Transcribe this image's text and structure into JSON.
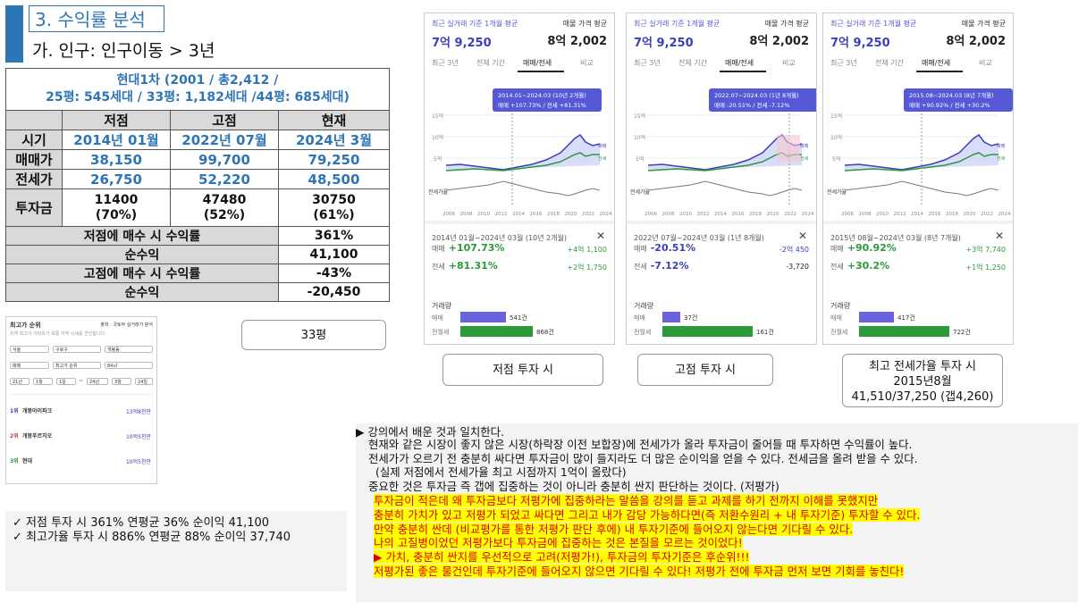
{
  "header": {
    "section_title": "3. 수익률 분석",
    "subtitle": "가. 인구: 인구이동 > 3년"
  },
  "table": {
    "title_line1": "현대1차 (2001 / 총2,412 /",
    "title_line2": "25평: 545세대 / 33평: 1,182세대 /44평: 685세대)",
    "col_headers": [
      "저점",
      "고점",
      "현재"
    ],
    "rows": {
      "period": {
        "label": "시기",
        "values": [
          "2014년 01월",
          "2022년 07월",
          "2024년 3월"
        ]
      },
      "sale": {
        "label": "매매가",
        "values": [
          "38,150",
          "99,700",
          "79,250"
        ]
      },
      "jeonse": {
        "label": "전세가",
        "values": [
          "26,750",
          "52,220",
          "48,500"
        ]
      },
      "invest": {
        "label": "투자금",
        "values": [
          "11400",
          "47480",
          "30750"
        ],
        "pct": [
          "(70%)",
          "(52%)",
          "(61%)"
        ]
      }
    },
    "summary": [
      {
        "label": "저점에 매수 시 수익률",
        "value": "361%"
      },
      {
        "label": "순수익",
        "value": "41,100"
      },
      {
        "label": "고점에 매수 시 수익률",
        "value": "-43%"
      },
      {
        "label": "순수익",
        "value": "-20,450"
      }
    ]
  },
  "mini_screenshot": {
    "title": "최고가 순위",
    "source": "출처 : 국토부 실거래가 분석",
    "desc": "지역 최고가 아파트가 보통 지역 시세를 견인합니다",
    "filters1": [
      "서울",
      "구로구",
      "개봉동"
    ],
    "filters2": [
      "매매",
      "최고가 순위",
      "84㎡"
    ],
    "filters3": [
      "21년",
      "1월",
      "1일",
      "~",
      "24년",
      "3월",
      "24일"
    ],
    "items": [
      {
        "rank": "1위",
        "name": "개봉아이파크",
        "price": "13억8천만"
      },
      {
        "rank": "2위",
        "name": "개봉푸르지오",
        "price": "10억5천만"
      },
      {
        "rank": "3위",
        "name": "현대",
        "price": "10억5천만"
      }
    ]
  },
  "label_33": "33평",
  "cards": [
    {
      "top_title": "최근 실거래 기준 1개월 평균",
      "avg_label": "매물 가격 평균",
      "price": "7억 9,250",
      "avg_price": "8억 2,002",
      "tabs": [
        "최근 3년",
        "전체 기간",
        "매매/전세",
        "비교"
      ],
      "tooltip1": "2014.01~2024.03 (10년 2개월)",
      "tooltip2": "매매 +107.73% / 전세 +81.31%",
      "y_labels": [
        "15억",
        "10억",
        "5억"
      ],
      "left_label": "전세가율",
      "legend": [
        "매매",
        "전세"
      ],
      "period": "2014년 01월~2024년 03월 (10년 2개월)",
      "sale_label": "매매",
      "sale_pct": "+107.73%",
      "sale_amt": "+4억 1,100",
      "jeonse_label": "전세",
      "jeonse_pct": "+81.31%",
      "jeonse_amt": "+2억 1,750",
      "volume_title": "거래량",
      "vol_labels": [
        "매매",
        "전월세"
      ],
      "vol_values": [
        "541건",
        "868건"
      ],
      "vol_fracs": [
        0.39,
        0.62
      ],
      "caption": "저점 투자 시",
      "sale_color": "#3b3fb8"
    },
    {
      "top_title": "최근 실거래 기준 1개월 평균",
      "avg_label": "매물 가격 평균",
      "price": "7억 9,250",
      "avg_price": "8억 2,002",
      "tabs": [
        "최근 3년",
        "전체 기간",
        "매매/전세",
        "비교"
      ],
      "tooltip1": "2022.07~2024.03 (1년 8개월)",
      "tooltip2": "매매 -20.51% / 전세 -7.12%",
      "y_labels": [
        "15억",
        "10억",
        "5억"
      ],
      "left_label": "전세가율",
      "legend": [
        "매매",
        "전세"
      ],
      "period": "2022년 07월~2024년 03월 (1년 8개월)",
      "sale_label": "매매",
      "sale_pct": "-20.51%",
      "sale_amt": "-2억 450",
      "jeonse_label": "전세",
      "jeonse_pct": "-7.12%",
      "jeonse_amt": "-3,720",
      "volume_title": "거래량",
      "vol_labels": [
        "매매",
        "전월세"
      ],
      "vol_values": [
        "37건",
        "161건"
      ],
      "vol_fracs": [
        0.15,
        0.78
      ],
      "caption": "고점 투자 시",
      "sale_color": "#3b3fb8"
    },
    {
      "top_title": "최근 실거래 기준 1개월 평균",
      "avg_label": "매물 가격 평균",
      "price": "7억 9,250",
      "avg_price": "8억 2,002",
      "tabs": [
        "최근 3년",
        "전체 기간",
        "매매/전세",
        "비교"
      ],
      "tooltip1": "2015.08~2024.03 (8년 7개월)",
      "tooltip2": "매매 +90.92% / 전세 +30.2%",
      "y_labels": [
        "15억",
        "10억",
        "5억"
      ],
      "left_label": "전세가율",
      "legend": [
        "매매",
        "전세"
      ],
      "period": "2015년 08월~2024년 03월 (8년 7개월)",
      "sale_label": "매매",
      "sale_pct": "+90.92%",
      "sale_amt": "+3억 7,740",
      "jeonse_label": "전세",
      "jeonse_pct": "+30.2%",
      "jeonse_amt": "+1억 1,250",
      "volume_title": "거래량",
      "vol_labels": [
        "매매",
        "전월세"
      ],
      "vol_values": [
        "417건",
        "722건"
      ],
      "vol_fracs": [
        0.3,
        0.78
      ],
      "caption_line1": "최고 전세가율 투자 시",
      "caption_line2": "2015년8월",
      "caption_line3": "41,510/37,250 (갭4,260)",
      "sale_color": "#3b3fb8"
    }
  ],
  "x_ticks": [
    "2006",
    "2008",
    "2010",
    "2012",
    "2014",
    "2016",
    "2018",
    "2020",
    "2022",
    "2024"
  ],
  "checks": [
    "저점 투자 시  361% 연평균 36% 순이익 41,100",
    "최고가율 투자 시 886% 연평균 88% 순이익 37,740"
  ],
  "notes": {
    "l1": "▶ 강의에서 배운 것과 일치한다.",
    "l2": "현재와 같은 시장이 좋지 않은 시장(하락장 이전 보합장)에 전세가가 올라 투자금이 줄어들 때 투자하면 수익률이 높다.",
    "l3": "전세가가 오르기 전 충분히 싸다면 투자금이 많이 들지라도 더 많은 순이익을 얻을 수 있다. 전세금을 올려 받을 수 있다.",
    "l4": "(실제 저점에서 전세가율 최고 시점까지 1억이 올랐다)",
    "l5": "중요한 것은 투자금 즉 갭에 집중하는 것이 아니라 충분히 싼지 판단하는 것이다. (저평가)",
    "l6": "투자금이 적은데 왜 투자금보다 저평가에 집중하라는 말씀을  강의를 듣고 과제를 하기 전까지 이해를 못했지만",
    "l7": "충분히 가치가 있고 저평가 되었고 싸다면  그리고 내가 감당 가능하다면(즉 저환수원리 + 내 투자기준) 투자할 수 있다.",
    "l8": "만약 충분히 싼데 (비교평가를 통한 저평가 판단 후에) 내 투자기준에 들어오지 않는다면 기다릴 수 있다.",
    "l9": "나의 고질병이었던 저평가보다 투자금에 집중하는 것은 본질을 모르는 것이었다!",
    "l10": "▶ 가치, 충분히 싼지를 우선적으로 고려(저평가!), 투자금의 투자기준은 후순위!!!",
    "l11": "저평가된 좋은 물건인데 투자기준에 들어오지 않으면 기다릴 수 있다! 저평가 전에 투자금 먼저 보면 기회를 놓친다!"
  }
}
